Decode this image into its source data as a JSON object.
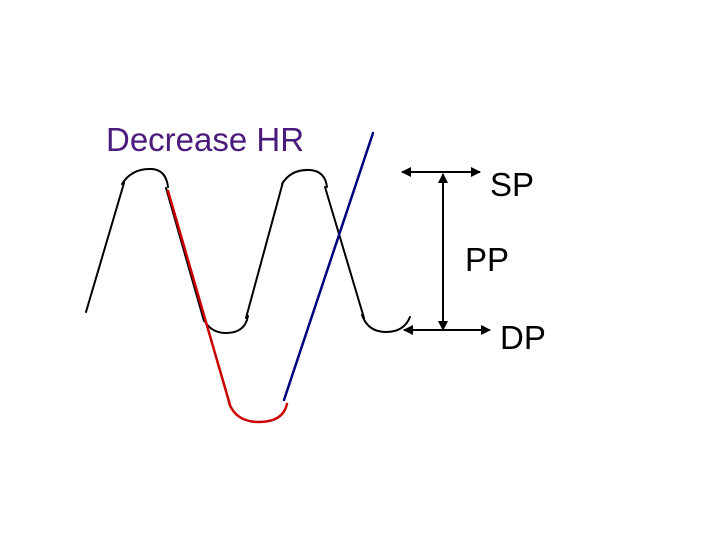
{
  "title": "Decrease HR",
  "labels": {
    "systolic": "SP",
    "pulse": "PP",
    "diastolic": "DP"
  },
  "colors": {
    "title": "#4b1a7d",
    "baseline_wave": "#000000",
    "decreased_wave_down": "#cc0000",
    "decreased_wave_up": "#00007a",
    "arrows": "#000000",
    "labels": "#000000"
  }
}
